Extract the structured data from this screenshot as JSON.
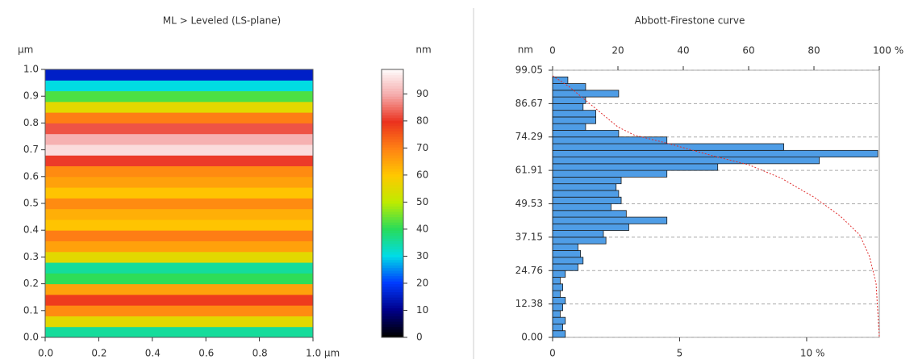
{
  "chart_data": [
    {
      "type": "heatmap",
      "title": "ML > Leveled (LS-plane)",
      "y_label": "µm",
      "xlim": [
        0,
        1
      ],
      "xticks": [
        {
          "value": 0,
          "label": "0.0"
        },
        0.2,
        0.4,
        0.6,
        0.8,
        {
          "value": 1,
          "label": "1.0 µm"
        }
      ],
      "ylim": [
        0,
        1
      ],
      "yticks": [
        {
          "value": 0,
          "label": "0.0"
        },
        0.1,
        0.2,
        0.3,
        0.4,
        0.5,
        0.6,
        0.7,
        0.8,
        0.9,
        {
          "value": 1,
          "label": "1.0"
        }
      ],
      "y": [
        0,
        0.04,
        0.08,
        0.12,
        0.16,
        0.2,
        0.24,
        0.28,
        0.32,
        0.36,
        0.4,
        0.44,
        0.48,
        0.52,
        0.56,
        0.6,
        0.64,
        0.68,
        0.72,
        0.76,
        0.8,
        0.84,
        0.88,
        0.92,
        0.96
      ],
      "values": [
        35,
        55,
        68,
        78,
        65,
        40,
        35,
        55,
        65,
        70,
        60,
        63,
        68,
        60,
        65,
        68,
        80,
        95,
        90,
        82,
        70,
        55,
        42,
        30,
        15
      ],
      "colorbar": {
        "label": "nm",
        "lim": [
          0,
          99.05
        ],
        "ticks": [
          0,
          10,
          20,
          30,
          40,
          50,
          60,
          70,
          80,
          90
        ]
      }
    },
    {
      "type": "histogram",
      "title": "Abbott-Firestone curve",
      "y_label": "nm",
      "color": "#4f9de6",
      "grid": true,
      "bins": [
        0,
        2.48,
        4.95,
        7.43,
        9.91,
        12.38,
        14.86,
        17.33,
        19.81,
        22.29,
        24.76,
        27.24,
        29.71,
        32.19,
        34.67,
        37.14,
        39.62,
        42.09,
        44.57,
        47.05,
        49.53,
        52.0,
        54.48,
        56.95,
        59.43,
        61.91,
        64.38,
        66.86,
        69.33,
        71.81,
        74.29,
        76.76,
        79.24,
        81.71,
        84.19,
        86.67,
        89.14,
        91.62,
        94.1,
        96.57,
        99.05
      ],
      "values": [
        0.5,
        0.4,
        0.5,
        0.3,
        0.4,
        0.5,
        0.3,
        0.4,
        0.3,
        0.5,
        1.0,
        1.2,
        1.1,
        1.0,
        2.1,
        2.0,
        3.0,
        4.5,
        2.9,
        2.3,
        2.7,
        2.6,
        2.5,
        2.7,
        4.5,
        6.5,
        10.5,
        12.8,
        9.1,
        4.5,
        2.6,
        1.3,
        1.7,
        1.7,
        1.2,
        1.3,
        2.6,
        1.3,
        0.6,
        0
      ],
      "ylim": [
        0,
        99.05
      ],
      "yticks": [
        {
          "value": 0,
          "label": "0.00"
        },
        12.38,
        24.76,
        37.15,
        49.53,
        61.91,
        74.29,
        86.67,
        99.05
      ],
      "xlim": [
        0,
        12.86
      ],
      "xticks": [
        0,
        5,
        {
          "value": 10,
          "label": "10 %"
        }
      ],
      "x2lim": [
        0,
        100
      ],
      "x2ticks": [
        0,
        20,
        40,
        60,
        80,
        {
          "value": 100,
          "label": "100 %"
        }
      ],
      "curve": {
        "color": "#e03030",
        "x": [
          0,
          5,
          10,
          15,
          20,
          25,
          35,
          50,
          60,
          70,
          80,
          88,
          94,
          97,
          99,
          100
        ],
        "values": [
          97,
          93,
          88,
          83,
          78,
          75,
          72,
          67,
          64,
          59,
          52,
          45,
          38,
          30,
          20,
          0
        ]
      }
    }
  ]
}
